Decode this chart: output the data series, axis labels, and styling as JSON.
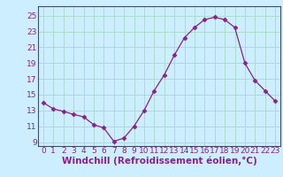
{
  "x": [
    0,
    1,
    2,
    3,
    4,
    5,
    6,
    7,
    8,
    9,
    10,
    11,
    12,
    13,
    14,
    15,
    16,
    17,
    18,
    19,
    20,
    21,
    22,
    23
  ],
  "y": [
    14.0,
    13.2,
    12.9,
    12.5,
    12.2,
    11.2,
    10.8,
    9.1,
    9.5,
    11.0,
    13.0,
    15.5,
    17.5,
    20.0,
    22.2,
    23.5,
    24.5,
    24.8,
    24.5,
    23.5,
    19.0,
    16.8,
    15.5,
    14.2
  ],
  "line_color": "#882288",
  "marker": "D",
  "marker_size": 2.5,
  "bg_color": "#cceeff",
  "grid_color": "#aaddcc",
  "ylabel_ticks": [
    9,
    11,
    13,
    15,
    17,
    19,
    21,
    23,
    25
  ],
  "xlabel_ticks": [
    0,
    1,
    2,
    3,
    4,
    5,
    6,
    7,
    8,
    9,
    10,
    11,
    12,
    13,
    14,
    15,
    16,
    17,
    18,
    19,
    20,
    21,
    22,
    23
  ],
  "xlabel_label": "Windchill (Refroidissement éolien,°C)",
  "ylim": [
    8.5,
    26.2
  ],
  "xlim": [
    -0.5,
    23.5
  ],
  "tick_fontsize": 6.5,
  "xlabel_fontsize": 7.5
}
